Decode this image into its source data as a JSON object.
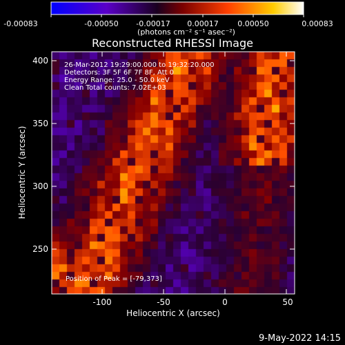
{
  "colorbar": {
    "tick_labels": [
      "-0.00083",
      "-0.00050",
      "-0.00017",
      "0.00017",
      "0.00050",
      "0.00083"
    ],
    "unit_label": "(photons cm⁻² s⁻¹ asec⁻²)",
    "colors": [
      "#0000ff",
      "#5a00c8",
      "#2a0030",
      "#8a0000",
      "#ff5000",
      "#ffd000",
      "#ffffff"
    ]
  },
  "plot": {
    "title": "Reconstructed RHESSI Image",
    "xlabel": "Heliocentric X (arcsec)",
    "ylabel": "Heliocentric Y (arcsec)",
    "x_ticks": [
      "-100",
      "-50",
      "0",
      "50"
    ],
    "y_ticks": [
      "400",
      "350",
      "300",
      "250"
    ],
    "annotations": {
      "line1": "26-Mar-2012 19:29:00.000 to 19:32:20.000",
      "line2": "Detectors: 3F 5F 6F 7F 8F, Att 0",
      "line3": "Energy Range: 25.0 - 50.0 keV",
      "line4": "Clean    Total counts: 7.02E+03",
      "peak": "Position of Peak = [-79,373]"
    }
  },
  "footer": {
    "timestamp": "9-May-2022 14:15"
  }
}
